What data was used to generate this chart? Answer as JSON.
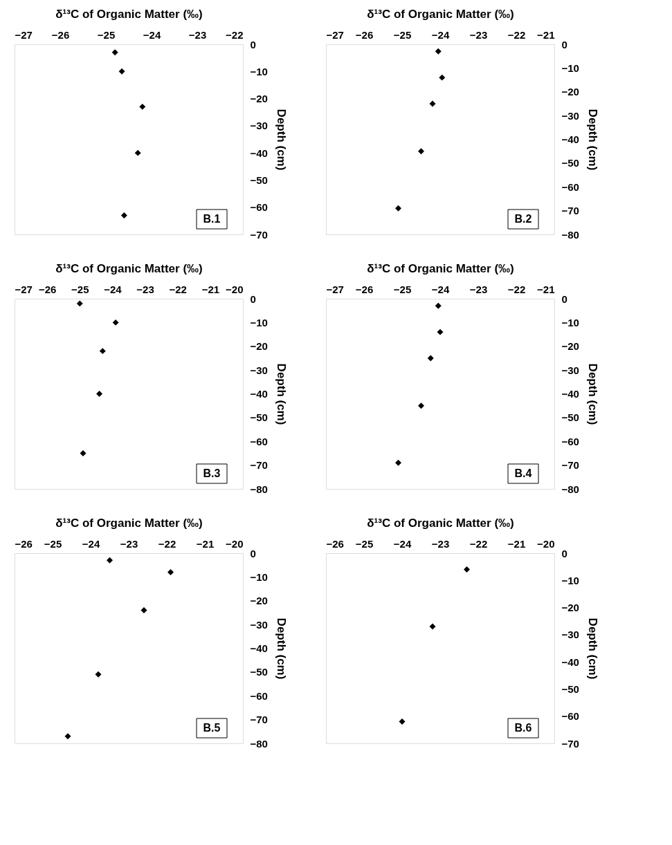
{
  "chart_data": [
    {
      "type": "scatter",
      "xlabel": "δ¹³C of Organic Matter (‰)",
      "ylabel": "Depth (cm)",
      "xlim": [
        -27,
        -22
      ],
      "xticks": [
        -27,
        -26,
        -25,
        -24,
        -23,
        -22
      ],
      "ylim": [
        -70,
        0
      ],
      "yticks": [
        0,
        -10,
        -20,
        -30,
        -40,
        -50,
        -60,
        -70
      ],
      "marker": "diamond",
      "grid": false,
      "annotations": [
        "B.1"
      ],
      "series": [
        {
          "color": "#000000",
          "x": [
            -24.8,
            -24.65,
            -24.2,
            -24.3,
            -24.6
          ],
          "values": [
            -3,
            -10,
            -23,
            -40,
            -63
          ]
        }
      ]
    },
    {
      "type": "scatter",
      "xlabel": "δ¹³C of Organic Matter (‰)",
      "ylabel": "Depth (cm)",
      "xlim": [
        -27,
        -21
      ],
      "xticks": [
        -27,
        -26,
        -25,
        -24,
        -23,
        -22,
        -21
      ],
      "ylim": [
        -80,
        0
      ],
      "yticks": [
        0,
        -10,
        -20,
        -30,
        -40,
        -50,
        -60,
        -70,
        -80
      ],
      "marker": "diamond",
      "grid": false,
      "annotations": [
        "B.2"
      ],
      "series": [
        {
          "color": "#000000",
          "x": [
            -24.05,
            -23.95,
            -24.2,
            -24.5,
            -25.1
          ],
          "values": [
            -3,
            -14,
            -25,
            -45,
            -69
          ]
        }
      ]
    },
    {
      "type": "scatter",
      "xlabel": "δ¹³C of Organic Matter (‰)",
      "ylabel": "Depth (cm)",
      "xlim": [
        -27,
        -20
      ],
      "xticks": [
        -27,
        -26,
        -25,
        -24,
        -23,
        -22,
        -21,
        -20
      ],
      "ylim": [
        -80,
        0
      ],
      "yticks": [
        0,
        -10,
        -20,
        -30,
        -40,
        -50,
        -60,
        -70,
        -80
      ],
      "marker": "diamond",
      "grid": false,
      "annotations": [
        "B.3"
      ],
      "series": [
        {
          "color": "#000000",
          "x": [
            -25.0,
            -23.9,
            -24.3,
            -24.4,
            -24.9
          ],
          "values": [
            -2,
            -10,
            -22,
            -40,
            -65
          ]
        }
      ]
    },
    {
      "type": "scatter",
      "xlabel": "δ¹³C of Organic Matter (‰)",
      "ylabel": "Depth (cm)",
      "xlim": [
        -27,
        -21
      ],
      "xticks": [
        -27,
        -26,
        -25,
        -24,
        -23,
        -22,
        -21
      ],
      "ylim": [
        -80,
        0
      ],
      "yticks": [
        0,
        -10,
        -20,
        -30,
        -40,
        -50,
        -60,
        -70,
        -80
      ],
      "marker": "diamond",
      "grid": false,
      "annotations": [
        "B.4"
      ],
      "series": [
        {
          "color": "#000000",
          "x": [
            -24.05,
            -24.0,
            -24.25,
            -24.5,
            -25.1
          ],
          "values": [
            -3,
            -14,
            -25,
            -45,
            -69
          ]
        }
      ]
    },
    {
      "type": "scatter",
      "xlabel": "δ¹³C of Organic Matter (‰)",
      "ylabel": "Depth (cm)",
      "xlim": [
        -26,
        -20
      ],
      "xticks": [
        -26,
        -25,
        -24,
        -23,
        -22,
        -21,
        -20
      ],
      "ylim": [
        -80,
        0
      ],
      "yticks": [
        0,
        -10,
        -20,
        -30,
        -40,
        -50,
        -60,
        -70,
        -80
      ],
      "marker": "diamond",
      "grid": false,
      "annotations": [
        "B.5"
      ],
      "series": [
        {
          "color": "#000000",
          "x": [
            -23.5,
            -21.9,
            -22.6,
            -23.8,
            -24.6
          ],
          "values": [
            -3,
            -8,
            -24,
            -51,
            -77
          ]
        }
      ]
    },
    {
      "type": "scatter",
      "xlabel": "δ¹³C of Organic Matter (‰)",
      "ylabel": "Depth (cm)",
      "xlim": [
        -26,
        -20
      ],
      "xticks": [
        -26,
        -25,
        -24,
        -23,
        -22,
        -21,
        -20
      ],
      "ylim": [
        -70,
        0
      ],
      "yticks": [
        0,
        -10,
        -20,
        -30,
        -40,
        -50,
        -60,
        -70
      ],
      "marker": "diamond",
      "grid": false,
      "annotations": [
        "B.6"
      ],
      "series": [
        {
          "color": "#000000",
          "x": [
            -22.3,
            -23.2,
            -24.0
          ],
          "values": [
            -6,
            -27,
            -62
          ]
        }
      ]
    }
  ]
}
